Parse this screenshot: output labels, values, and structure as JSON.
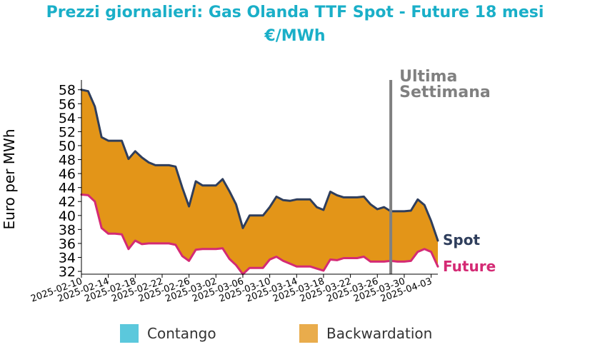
{
  "title_line1": "Prezzi giornalieri: Gas Olanda TTF Spot - Future 18 mesi",
  "title_line2": "€/MWh",
  "colors": {
    "title": "#1aafc8",
    "spot": "#2f3e5c",
    "future": "#d42a74",
    "backwardation": "#e39518",
    "contango": "#5bc8dc",
    "marker": "#808080"
  },
  "legend": [
    {
      "label": "Contango",
      "color": "#5bc8dc"
    },
    {
      "label": "Backwardation",
      "color": "#e9ac4c"
    }
  ],
  "chart_data": {
    "type": "area",
    "title": "Prezzi giornalieri: Gas Olanda TTF Spot - Future 18 mesi €/MWh",
    "ylabel": "Euro per MWh",
    "xlabel": "",
    "ylim": [
      31.6,
      59.4
    ],
    "yticks": [
      32,
      34,
      36,
      38,
      40,
      42,
      44,
      46,
      48,
      50,
      52,
      54,
      56,
      58
    ],
    "xlim": [
      "2025-02-10",
      "2025-04-04"
    ],
    "xticks": [
      "2025-02-10",
      "2025-02-14",
      "2025-02-18",
      "2025-02-22",
      "2025-02-26",
      "2025-03-02",
      "2025-03-06",
      "2025-03-10",
      "2025-03-14",
      "2025-03-18",
      "2025-03-22",
      "2025-03-26",
      "2025-03-30",
      "2025-04-03"
    ],
    "marker": {
      "date": "2025-03-28",
      "label_line1": "Ultima",
      "label_line2": "Settimana"
    },
    "x": [
      "2025-02-10",
      "2025-02-11",
      "2025-02-12",
      "2025-02-13",
      "2025-02-14",
      "2025-02-15",
      "2025-02-16",
      "2025-02-17",
      "2025-02-18",
      "2025-02-19",
      "2025-02-20",
      "2025-02-21",
      "2025-02-22",
      "2025-02-23",
      "2025-02-24",
      "2025-02-25",
      "2025-02-26",
      "2025-02-27",
      "2025-02-28",
      "2025-03-01",
      "2025-03-02",
      "2025-03-03",
      "2025-03-04",
      "2025-03-05",
      "2025-03-06",
      "2025-03-07",
      "2025-03-08",
      "2025-03-09",
      "2025-03-10",
      "2025-03-11",
      "2025-03-12",
      "2025-03-13",
      "2025-03-14",
      "2025-03-15",
      "2025-03-16",
      "2025-03-17",
      "2025-03-18",
      "2025-03-19",
      "2025-03-20",
      "2025-03-21",
      "2025-03-22",
      "2025-03-23",
      "2025-03-24",
      "2025-03-25",
      "2025-03-26",
      "2025-03-27",
      "2025-03-28",
      "2025-03-29",
      "2025-03-30",
      "2025-03-31",
      "2025-04-01",
      "2025-04-02",
      "2025-04-03",
      "2025-04-04"
    ],
    "series": [
      {
        "name": "Spot",
        "values": [
          58.0,
          57.8,
          55.6,
          51.2,
          50.7,
          50.7,
          50.7,
          48.1,
          49.2,
          48.3,
          47.6,
          47.2,
          47.2,
          47.2,
          47.0,
          44.0,
          41.3,
          44.9,
          44.3,
          44.3,
          44.3,
          45.2,
          43.5,
          41.6,
          38.2,
          40.0,
          40.0,
          40.0,
          41.2,
          42.7,
          42.2,
          42.1,
          42.3,
          42.3,
          42.3,
          41.2,
          40.8,
          43.4,
          42.9,
          42.6,
          42.6,
          42.6,
          42.7,
          41.6,
          40.9,
          41.2,
          40.6,
          40.6,
          40.6,
          40.7,
          42.3,
          41.5,
          39.2,
          36.4
        ]
      },
      {
        "name": "Future",
        "values": [
          43.0,
          42.9,
          42.0,
          38.2,
          37.4,
          37.4,
          37.3,
          35.2,
          36.4,
          35.9,
          36.0,
          36.0,
          36.0,
          36.0,
          35.8,
          34.2,
          33.5,
          35.1,
          35.2,
          35.2,
          35.2,
          35.3,
          33.8,
          32.9,
          31.6,
          32.5,
          32.5,
          32.5,
          33.7,
          34.1,
          33.5,
          33.1,
          32.7,
          32.7,
          32.7,
          32.4,
          32.1,
          33.7,
          33.6,
          33.9,
          33.9,
          33.9,
          34.1,
          33.4,
          33.4,
          33.4,
          33.5,
          33.4,
          33.4,
          33.5,
          34.8,
          35.2,
          34.8,
          32.7
        ]
      }
    ],
    "fill_between": {
      "above": "Spot",
      "below": "Future",
      "color": "#e39518",
      "meaning": "Backwardation"
    },
    "end_labels": [
      "Spot",
      "Future"
    ]
  }
}
